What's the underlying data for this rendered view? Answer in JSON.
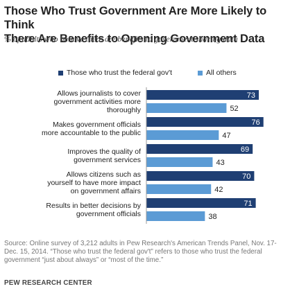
{
  "header": {
    "title_line1": "Those Who Trust Government Are More Likely to Think",
    "title_line2": "There Are Benefits to Opening Government Data",
    "subtitle": "% of adults who believe there are benefits to government sharing data"
  },
  "colors": {
    "series_trust": "#1f3f73",
    "series_others": "#5b9bd5",
    "value_text_light": "#ffffff"
  },
  "chart_data": {
    "type": "bar",
    "orientation": "horizontal",
    "legend_position": "top",
    "grid": false,
    "xlim": [
      0,
      80
    ],
    "categories": [
      [
        "Allows journalists to cover",
        "government activities more",
        "thoroughly"
      ],
      [
        "Makes government officials",
        "more accountable to the public"
      ],
      [
        "Improves the quality of",
        "government services"
      ],
      [
        "Allows citizens such as",
        "yourself to have more impact",
        "on government affairs"
      ],
      [
        "Results in better decisions by",
        "government officials"
      ]
    ],
    "series": [
      {
        "name": "Those who trust the federal gov't",
        "values": [
          73,
          76,
          69,
          70,
          71
        ]
      },
      {
        "name": "All others",
        "values": [
          52,
          47,
          43,
          42,
          38
        ]
      }
    ]
  },
  "footer": {
    "source_line1": "Source: Online survey of 3,212 adults in Pew Research's American Trends Panel, Nov. 17-",
    "source_line2": "Dec. 15, 2014. “Those who trust the federal gov't” refers to those who trust the federal",
    "source_line3": "government “just about always” or “most of the time.”",
    "org": "PEW RESEARCH CENTER"
  }
}
